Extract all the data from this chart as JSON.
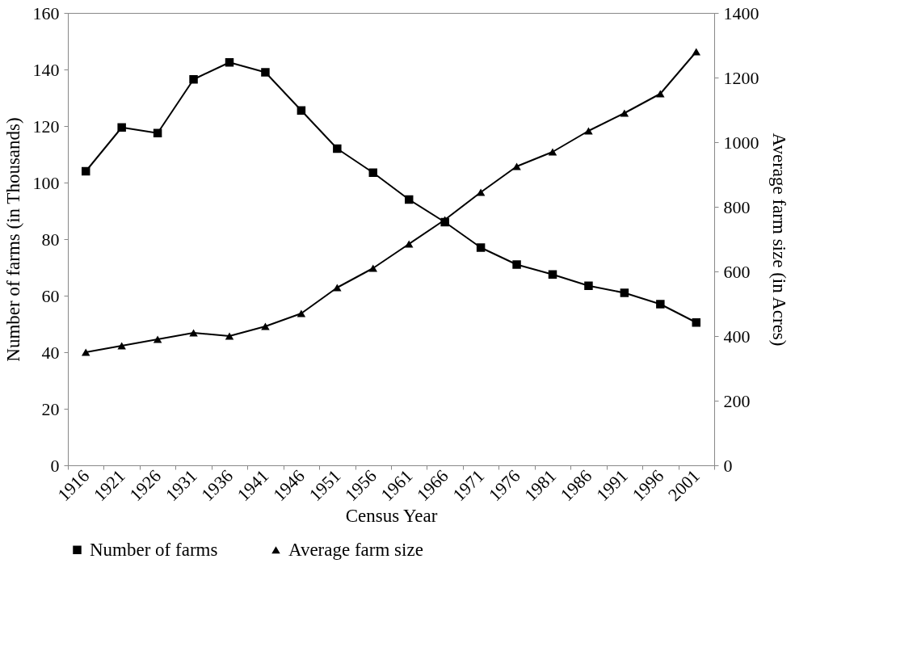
{
  "chart_data": {
    "type": "line",
    "xlabel": "Census Year",
    "ylabel": "Number of farms (in Thousands)",
    "y2label": "Average farm size (in Acres)",
    "categories": [
      "1916",
      "1921",
      "1926",
      "1931",
      "1936",
      "1941",
      "1946",
      "1951",
      "1956",
      "1961",
      "1966",
      "1971",
      "1976",
      "1981",
      "1986",
      "1991",
      "1996",
      "2001"
    ],
    "series": [
      {
        "name": "Number of farms",
        "color": "#000000",
        "marker": "square",
        "values": [
          104,
          119.5,
          117.5,
          136.5,
          142.5,
          139,
          125.5,
          112,
          103.5,
          94,
          86,
          77,
          71,
          67.5,
          63.5,
          61,
          57,
          50.5
        ]
      },
      {
        "name": "Average farm size",
        "color": "#000000",
        "marker": "triangle",
        "axis": "y2",
        "values": [
          350,
          370,
          390,
          410,
          400,
          430,
          470,
          550,
          610,
          685,
          760,
          845,
          925,
          970,
          1035,
          1090,
          1150,
          1280
        ]
      }
    ],
    "ylim": [
      0,
      160
    ],
    "yticks": [
      0,
      20,
      40,
      60,
      80,
      100,
      120,
      140,
      160
    ],
    "y2lim": [
      0,
      1400
    ],
    "y2ticks": [
      0,
      200,
      400,
      600,
      800,
      1000,
      1200,
      1400
    ],
    "grid": false,
    "legend": "bottom",
    "line_style": "solid"
  }
}
